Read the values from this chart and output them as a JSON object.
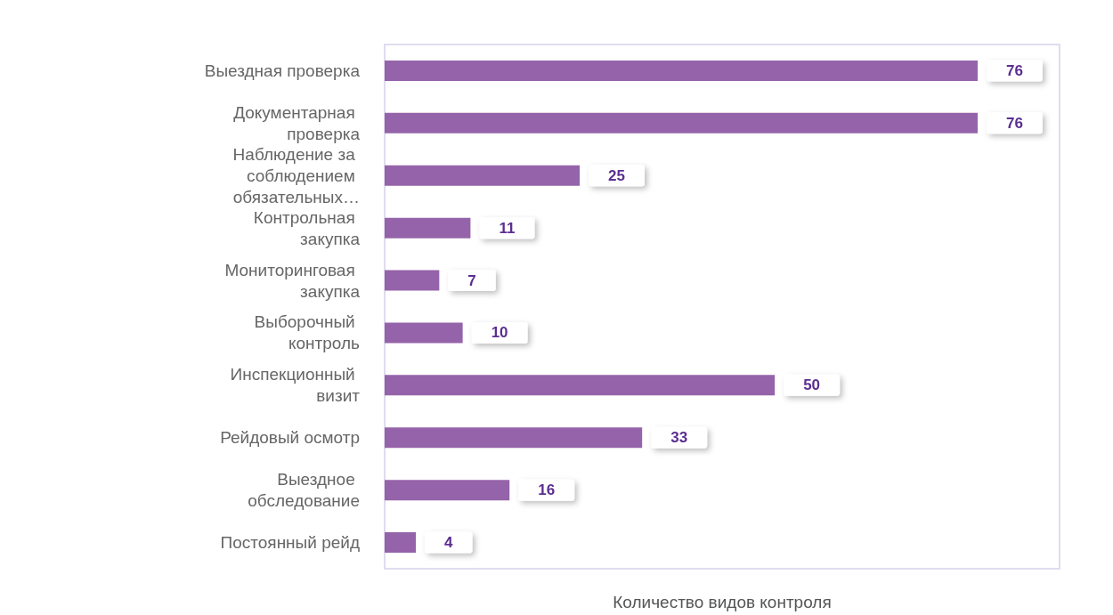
{
  "chart_data": {
    "type": "bar",
    "orientation": "horizontal",
    "xlabel": "Количество видов контроля",
    "categories": [
      "Выездная проверка",
      "Документарная проверка",
      "Наблюдение за соблюдением обязательных…",
      "Контрольная закупка",
      "Мониторинговая закупка",
      "Выборочный контроль",
      "Инспекционный визит",
      "Рейдовый осмотр",
      "Выездное обследование",
      "Постоянный рейд"
    ],
    "values": [
      76,
      76,
      25,
      11,
      7,
      10,
      50,
      33,
      16,
      4
    ],
    "color": "#9563a9",
    "xlim": [
      0,
      86.5
    ],
    "data_labels": true
  }
}
